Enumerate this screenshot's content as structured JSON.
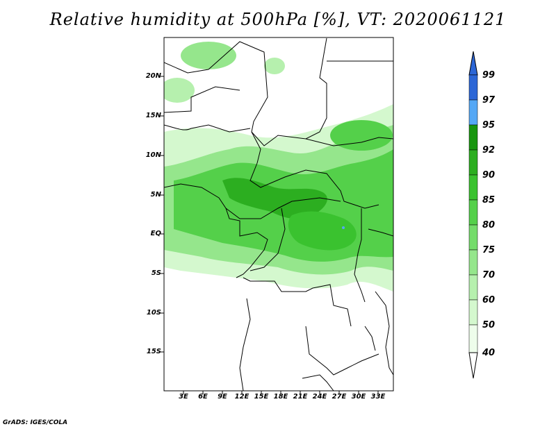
{
  "title": "Relative humidity at 500hPa [%], VT: 2020061121",
  "credit": "GrADS: IGES/COLA",
  "map": {
    "lat_labels": [
      "20N",
      "15N",
      "10N",
      "5N",
      "EQ",
      "5S",
      "10S",
      "15S"
    ],
    "lon_labels": [
      "3E",
      "6E",
      "9E",
      "12E",
      "15E",
      "18E",
      "21E",
      "24E",
      "27E",
      "30E",
      "33E"
    ],
    "land_color": "#ffffff",
    "border_color": "#000000"
  },
  "colorbar": {
    "labels": [
      "99",
      "97",
      "95",
      "92",
      "90",
      "85",
      "80",
      "75",
      "70",
      "60",
      "50",
      "40"
    ],
    "colors": [
      "#2c66d6",
      "#3b86ee",
      "#55a8f5",
      "#18960f",
      "#2cae20",
      "#3ac22f",
      "#54d04a",
      "#74dc6a",
      "#95e68c",
      "#b6f0ae",
      "#d4f8ce",
      "#eefdeb"
    ]
  }
}
